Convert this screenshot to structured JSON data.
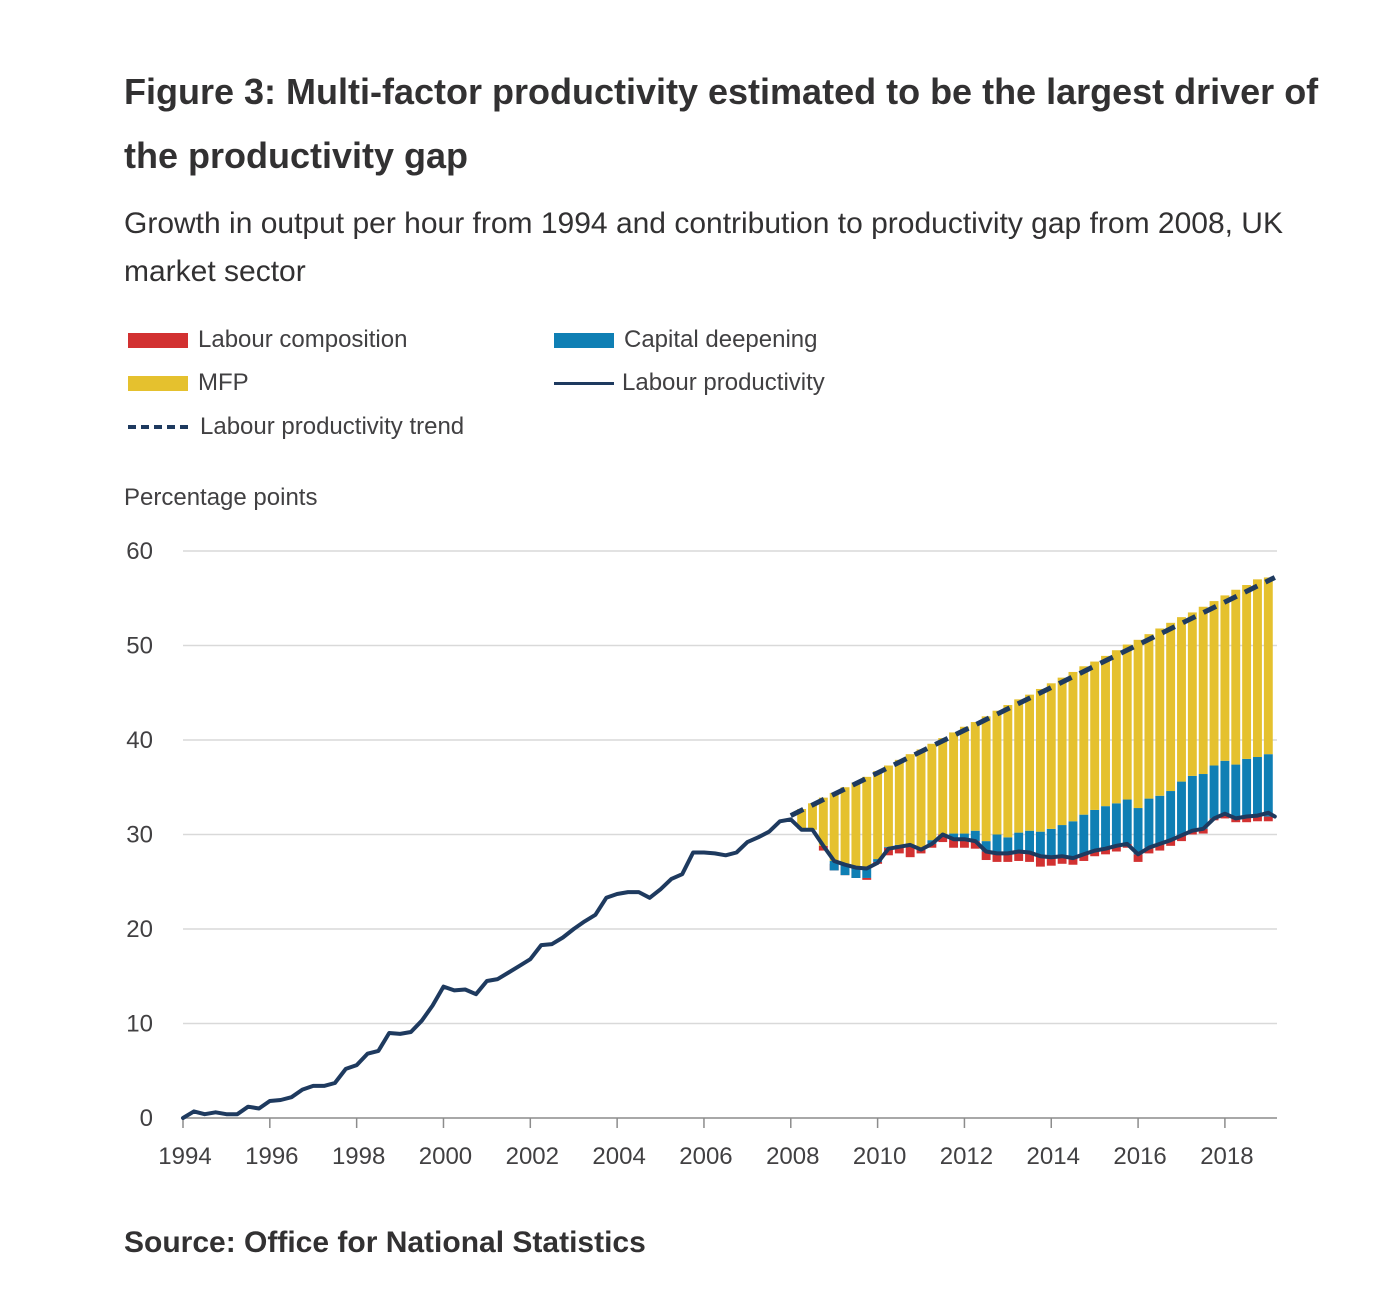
{
  "figure": {
    "title": "Figure 3: Multi-factor productivity estimated to be the largest driver of the productivity gap",
    "subtitle": "Growth in output per hour from 1994 and contribution to productivity gap from 2008, UK market sector",
    "source": "Source: Office for National Statistics"
  },
  "legend": {
    "labour_composition": "Labour composition",
    "capital_deepening": "Capital deepening",
    "mfp": "MFP",
    "labour_productivity": "Labour productivity",
    "labour_productivity_trend": "Labour productivity trend"
  },
  "colors": {
    "labour_composition": "#d23131",
    "capital_deepening": "#0f7fb4",
    "mfp": "#e5c12e",
    "labour_productivity": "#1e3a5f",
    "labour_productivity_trend": "#1e3a5f",
    "grid": "#d9d9d9"
  },
  "chart_data": {
    "type": "bar",
    "ylabel": "Percentage points",
    "ylim": [
      0,
      60
    ],
    "yticks": [
      0,
      10,
      20,
      30,
      40,
      50,
      60
    ],
    "xlim": [
      1994,
      2019.2
    ],
    "xticks": [
      1994,
      1996,
      1998,
      2000,
      2002,
      2004,
      2006,
      2008,
      2010,
      2012,
      2014,
      2016,
      2018
    ],
    "grid": true,
    "legend_position": "top",
    "stacked": true,
    "labour_productivity": [
      [
        1994.0,
        0.0
      ],
      [
        1994.25,
        0.7
      ],
      [
        1994.5,
        0.4
      ],
      [
        1994.75,
        0.6
      ],
      [
        1995.0,
        0.4
      ],
      [
        1995.25,
        0.4
      ],
      [
        1995.5,
        1.2
      ],
      [
        1995.75,
        1.0
      ],
      [
        1996.0,
        1.8
      ],
      [
        1996.25,
        1.9
      ],
      [
        1996.5,
        2.2
      ],
      [
        1996.75,
        3.0
      ],
      [
        1997.0,
        3.4
      ],
      [
        1997.25,
        3.4
      ],
      [
        1997.5,
        3.7
      ],
      [
        1997.75,
        5.2
      ],
      [
        1998.0,
        5.6
      ],
      [
        1998.25,
        6.8
      ],
      [
        1998.5,
        7.1
      ],
      [
        1998.75,
        9.0
      ],
      [
        1999.0,
        8.9
      ],
      [
        1999.25,
        9.1
      ],
      [
        1999.5,
        10.3
      ],
      [
        1999.75,
        11.9
      ],
      [
        2000.0,
        13.9
      ],
      [
        2000.25,
        13.5
      ],
      [
        2000.5,
        13.6
      ],
      [
        2000.75,
        13.1
      ],
      [
        2001.0,
        14.5
      ],
      [
        2001.25,
        14.7
      ],
      [
        2001.5,
        15.4
      ],
      [
        2001.75,
        16.1
      ],
      [
        2002.0,
        16.8
      ],
      [
        2002.25,
        18.3
      ],
      [
        2002.5,
        18.4
      ],
      [
        2002.75,
        19.1
      ],
      [
        2003.0,
        20.0
      ],
      [
        2003.25,
        20.8
      ],
      [
        2003.5,
        21.5
      ],
      [
        2003.75,
        23.3
      ],
      [
        2004.0,
        23.7
      ],
      [
        2004.25,
        23.9
      ],
      [
        2004.5,
        23.9
      ],
      [
        2004.75,
        23.3
      ],
      [
        2005.0,
        24.2
      ],
      [
        2005.25,
        25.3
      ],
      [
        2005.5,
        25.8
      ],
      [
        2005.75,
        28.1
      ],
      [
        2006.0,
        28.1
      ],
      [
        2006.25,
        28.0
      ],
      [
        2006.5,
        27.8
      ],
      [
        2006.75,
        28.1
      ],
      [
        2007.0,
        29.2
      ],
      [
        2007.25,
        29.7
      ],
      [
        2007.5,
        30.3
      ],
      [
        2007.75,
        31.4
      ],
      [
        2008.0,
        31.6
      ],
      [
        2008.25,
        30.5
      ],
      [
        2008.5,
        30.5
      ],
      [
        2008.75,
        28.8
      ],
      [
        2009.0,
        27.2
      ],
      [
        2009.25,
        26.8
      ],
      [
        2009.5,
        26.5
      ],
      [
        2009.75,
        26.4
      ],
      [
        2010.0,
        27.0
      ],
      [
        2010.25,
        28.5
      ],
      [
        2010.5,
        28.7
      ],
      [
        2010.75,
        28.9
      ],
      [
        2011.0,
        28.4
      ],
      [
        2011.25,
        29.0
      ],
      [
        2011.5,
        30.0
      ],
      [
        2011.75,
        29.5
      ],
      [
        2012.0,
        29.5
      ],
      [
        2012.25,
        29.3
      ],
      [
        2012.5,
        28.2
      ],
      [
        2012.75,
        28.0
      ],
      [
        2013.0,
        28.0
      ],
      [
        2013.25,
        28.2
      ],
      [
        2013.5,
        28.1
      ],
      [
        2013.75,
        27.7
      ],
      [
        2014.0,
        27.6
      ],
      [
        2014.25,
        27.7
      ],
      [
        2014.5,
        27.5
      ],
      [
        2014.75,
        27.9
      ],
      [
        2015.0,
        28.3
      ],
      [
        2015.25,
        28.5
      ],
      [
        2015.5,
        28.8
      ],
      [
        2015.75,
        29.0
      ],
      [
        2016.0,
        27.9
      ],
      [
        2016.25,
        28.6
      ],
      [
        2016.5,
        29.0
      ],
      [
        2016.75,
        29.4
      ],
      [
        2017.0,
        29.9
      ],
      [
        2017.25,
        30.4
      ],
      [
        2017.5,
        30.6
      ],
      [
        2017.75,
        31.7
      ],
      [
        2018.0,
        32.2
      ],
      [
        2018.25,
        31.7
      ],
      [
        2018.5,
        31.9
      ],
      [
        2018.75,
        32.0
      ],
      [
        2019.0,
        32.3
      ],
      [
        2019.15,
        31.9
      ]
    ],
    "labour_productivity_trend": [
      [
        2008.0,
        32.0
      ],
      [
        2019.15,
        57.2
      ]
    ],
    "bars": {
      "x": [
        2008.25,
        2008.5,
        2008.75,
        2009.0,
        2009.25,
        2009.5,
        2009.75,
        2010.0,
        2010.25,
        2010.5,
        2010.75,
        2011.0,
        2011.25,
        2011.5,
        2011.75,
        2012.0,
        2012.25,
        2012.5,
        2012.75,
        2013.0,
        2013.25,
        2013.5,
        2013.75,
        2014.0,
        2014.25,
        2014.5,
        2014.75,
        2015.0,
        2015.25,
        2015.5,
        2015.75,
        2016.0,
        2016.25,
        2016.5,
        2016.75,
        2017.0,
        2017.25,
        2017.5,
        2017.75,
        2018.0,
        2018.25,
        2018.5,
        2018.75,
        2019.0
      ],
      "labour_composition_bottom": [
        30.6,
        30.5,
        28.3,
        26.9,
        26.6,
        26.4,
        25.2,
        26.9,
        27.8,
        28.0,
        27.6,
        28.0,
        28.6,
        29.2,
        28.6,
        28.6,
        28.5,
        27.3,
        27.1,
        27.1,
        27.2,
        27.1,
        26.6,
        26.7,
        26.9,
        26.8,
        27.2,
        27.7,
        27.9,
        28.2,
        28.6,
        27.1,
        28.0,
        28.3,
        28.8,
        29.3,
        30.0,
        30.1,
        31.5,
        31.7,
        31.3,
        31.3,
        31.4,
        31.4
      ],
      "capital_deepening_bottom": [
        30.6,
        30.5,
        28.8,
        26.2,
        25.7,
        25.4,
        25.4,
        27.1,
        28.6,
        28.7,
        28.9,
        28.4,
        29.0,
        30.0,
        29.5,
        29.5,
        29.3,
        28.2,
        28.0,
        28.0,
        28.2,
        28.1,
        27.7,
        27.6,
        27.7,
        27.5,
        27.9,
        28.3,
        28.5,
        28.8,
        29.0,
        27.9,
        28.6,
        29.0,
        29.4,
        29.9,
        30.4,
        30.6,
        31.7,
        32.2,
        31.7,
        31.9,
        32.0,
        31.9
      ],
      "capital_deepening_top": [
        30.6,
        30.5,
        28.8,
        27.2,
        26.8,
        26.5,
        26.4,
        27.4,
        28.7,
        28.9,
        28.9,
        28.6,
        29.4,
        30.0,
        30.1,
        30.1,
        30.4,
        29.3,
        30.0,
        29.7,
        30.2,
        30.4,
        30.3,
        30.6,
        31.0,
        31.4,
        32.1,
        32.6,
        33.0,
        33.3,
        33.7,
        32.8,
        33.8,
        34.1,
        34.6,
        35.6,
        36.2,
        36.4,
        37.3,
        37.8,
        37.4,
        38.0,
        38.2,
        38.5
      ],
      "mfp_top": [
        32.7,
        33.3,
        33.9,
        34.4,
        35.0,
        35.5,
        36.1,
        36.7,
        37.3,
        37.9,
        38.5,
        39.0,
        39.6,
        40.2,
        40.8,
        41.4,
        41.9,
        42.5,
        43.1,
        43.7,
        44.3,
        44.8,
        45.4,
        46.0,
        46.6,
        47.2,
        47.8,
        48.3,
        48.9,
        49.5,
        50.1,
        50.6,
        51.2,
        51.8,
        52.4,
        53.0,
        53.5,
        54.1,
        54.7,
        55.3,
        55.9,
        56.4,
        57.0,
        57.2
      ]
    }
  }
}
